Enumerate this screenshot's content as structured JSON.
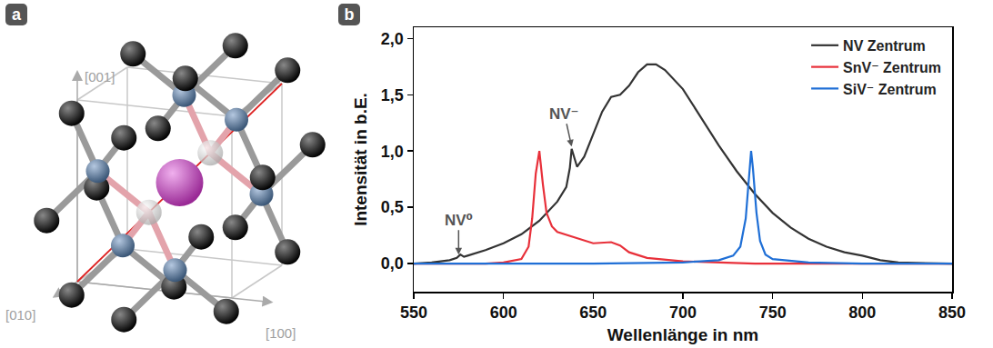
{
  "diagram": {
    "panel_label": "a",
    "axis_labels": [
      "[001]",
      "[010]",
      "[100]"
    ]
  },
  "chart_data": {
    "type": "line",
    "panel_label": "b",
    "x_label": "Wellenlänge in nm",
    "y_label": "Intensität in b.E.",
    "xlim": [
      550,
      850
    ],
    "xticks": [
      550,
      600,
      650,
      700,
      750,
      800,
      850
    ],
    "ylim": [
      -0.25,
      2.1
    ],
    "yticks": [
      {
        "value": 0,
        "label": "0,0"
      },
      {
        "value": 0.5,
        "label": "0,5"
      },
      {
        "value": 1.0,
        "label": "1,0"
      },
      {
        "value": 1.5,
        "label": "1,5"
      },
      {
        "value": 2.0,
        "label": "2,0"
      }
    ],
    "grid": false,
    "legend": "upper right",
    "series": [
      {
        "name": "NV Zentrum",
        "color": "#333333",
        "x": [
          550,
          560,
          570,
          574,
          576,
          578,
          580,
          590,
          600,
          610,
          620,
          630,
          635,
          637,
          638,
          639,
          641,
          645,
          650,
          655,
          660,
          665,
          670,
          675,
          680,
          685,
          690,
          700,
          710,
          720,
          730,
          740,
          750,
          760,
          770,
          780,
          790,
          800,
          810,
          820,
          830,
          850
        ],
        "values": [
          0,
          0.01,
          0.03,
          0.05,
          0.08,
          0.06,
          0.07,
          0.12,
          0.18,
          0.26,
          0.38,
          0.55,
          0.68,
          0.85,
          1.02,
          0.96,
          0.86,
          0.95,
          1.15,
          1.35,
          1.48,
          1.5,
          1.58,
          1.7,
          1.77,
          1.77,
          1.72,
          1.55,
          1.3,
          1.05,
          0.82,
          0.62,
          0.45,
          0.32,
          0.22,
          0.15,
          0.1,
          0.07,
          0.03,
          0.01,
          0.005,
          0
        ]
      },
      {
        "name": "SnV⁻ Zentrum",
        "color": "#e8303a",
        "x": [
          550,
          590,
          600,
          610,
          614,
          616,
          618,
          620,
          622,
          624,
          627,
          630,
          640,
          650,
          660,
          665,
          670,
          680,
          700,
          720,
          740,
          850
        ],
        "values": [
          0,
          0,
          0.01,
          0.04,
          0.15,
          0.4,
          0.8,
          1.0,
          0.7,
          0.45,
          0.33,
          0.28,
          0.23,
          0.18,
          0.19,
          0.16,
          0.1,
          0.05,
          0.02,
          0.01,
          0,
          0
        ]
      },
      {
        "name": "SiV⁻ Zentrum",
        "color": "#1f6fd6",
        "x": [
          550,
          650,
          700,
          720,
          728,
          732,
          735,
          737,
          738,
          739,
          741,
          743,
          746,
          750,
          770,
          800,
          850
        ],
        "values": [
          0,
          0,
          0.01,
          0.03,
          0.07,
          0.15,
          0.4,
          0.85,
          1.0,
          0.85,
          0.45,
          0.2,
          0.08,
          0.04,
          0.01,
          0,
          0
        ]
      }
    ],
    "annotations": [
      {
        "text": "NV⁰",
        "x": 575,
        "y": 0.08
      },
      {
        "text": "NV⁻",
        "x": 638,
        "y": 1.04
      }
    ]
  }
}
